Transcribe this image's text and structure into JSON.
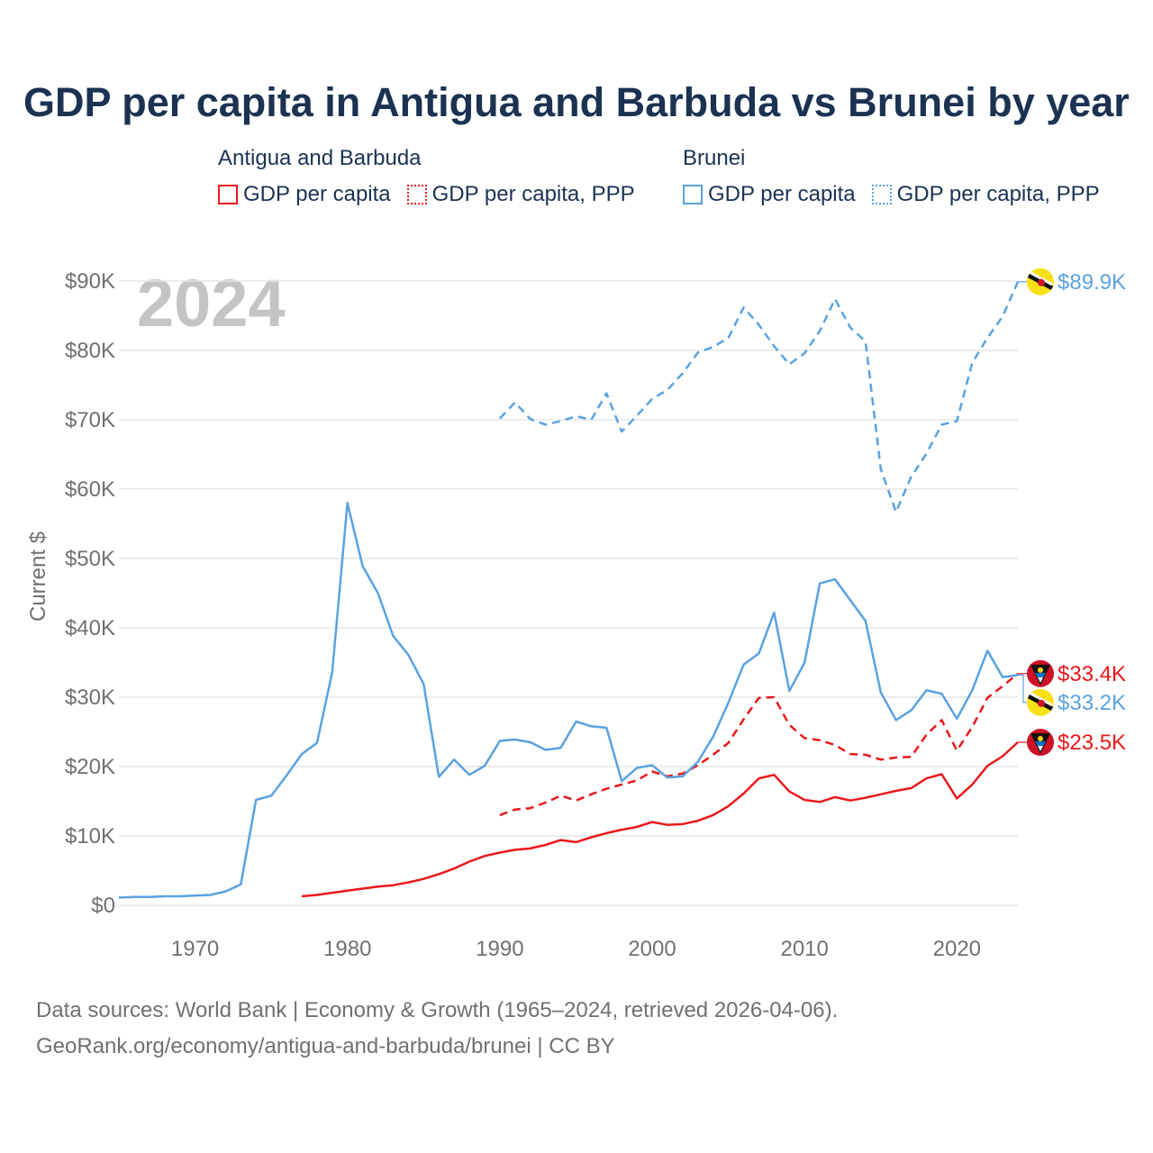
{
  "title": "GDP per capita in Antigua and Barbuda vs Brunei by year",
  "legend": {
    "antigua": {
      "title": "Antigua and Barbuda",
      "gdp": "GDP per capita",
      "ppp": "GDP per capita, PPP"
    },
    "brunei": {
      "title": "Brunei",
      "gdp": "GDP per capita",
      "ppp": "GDP per capita, PPP"
    }
  },
  "colors": {
    "antigua": "#e8191c",
    "brunei": "#5aa2e0",
    "grid": "#e6e6e6",
    "axis_text": "#707070",
    "year_watermark": "#c4c4c4",
    "title": "#1b3252"
  },
  "source": {
    "line1": "Data sources: World Bank | Economy & Growth (1965–2024, retrieved 2026-04-06).",
    "line2": "GeoRank.org/economy/antigua-and-barbuda/brunei | CC BY"
  },
  "chart_data": {
    "type": "line",
    "year_label": "2024",
    "ylabel": "Current $",
    "xlim": [
      1965,
      2024
    ],
    "ylim": [
      0,
      90000
    ],
    "x_ticks": [
      1970,
      1980,
      1990,
      2000,
      2010,
      2020
    ],
    "x_tick_labels": [
      "1970",
      "1980",
      "1990",
      "2000",
      "2010",
      "2020"
    ],
    "y_ticks": [
      0,
      10000,
      20000,
      30000,
      40000,
      50000,
      60000,
      70000,
      80000,
      90000
    ],
    "y_tick_labels": [
      "$0",
      "$10K",
      "$20K",
      "$30K",
      "$40K",
      "$50K",
      "$60K",
      "$70K",
      "$80K",
      "$90K"
    ],
    "series": [
      {
        "name": "Antigua and Barbuda GDP per capita",
        "country": "antigua",
        "style": "solid",
        "end_label": "$23.5K",
        "x": [
          1977,
          1978,
          1979,
          1980,
          1981,
          1982,
          1983,
          1984,
          1985,
          1986,
          1987,
          1988,
          1989,
          1990,
          1991,
          1992,
          1993,
          1994,
          1995,
          1996,
          1997,
          1998,
          1999,
          2000,
          2001,
          2002,
          2003,
          2004,
          2005,
          2006,
          2007,
          2008,
          2009,
          2010,
          2011,
          2012,
          2013,
          2014,
          2015,
          2016,
          2017,
          2018,
          2019,
          2020,
          2021,
          2022,
          2023,
          2024
        ],
        "values": [
          1300,
          1500,
          1800,
          2100,
          2400,
          2700,
          2900,
          3300,
          3800,
          4500,
          5300,
          6300,
          7100,
          7600,
          8000,
          8200,
          8700,
          9400,
          9100,
          9800,
          10400,
          10900,
          11300,
          12000,
          11600,
          11700,
          12200,
          13000,
          14300,
          16100,
          18300,
          18800,
          16400,
          15200,
          14900,
          15600,
          15100,
          15500,
          16000,
          16500,
          16900,
          18300,
          18900,
          15400,
          17400,
          20100,
          21500,
          23500
        ]
      },
      {
        "name": "Antigua and Barbuda GDP per capita, PPP",
        "country": "antigua",
        "style": "dashed",
        "end_label": "$33.4K",
        "x": [
          1990,
          1991,
          1992,
          1993,
          1994,
          1995,
          1996,
          1997,
          1998,
          1999,
          2000,
          2001,
          2002,
          2003,
          2004,
          2005,
          2006,
          2007,
          2008,
          2009,
          2010,
          2011,
          2012,
          2013,
          2014,
          2015,
          2016,
          2017,
          2018,
          2019,
          2020,
          2021,
          2022,
          2023,
          2024
        ],
        "values": [
          13000,
          13800,
          14000,
          14800,
          15800,
          15100,
          16000,
          16800,
          17400,
          18000,
          19300,
          18600,
          19000,
          20200,
          21700,
          23400,
          26800,
          29900,
          30000,
          26000,
          24100,
          23800,
          23100,
          21800,
          21700,
          21000,
          21300,
          21400,
          24600,
          26700,
          22300,
          25700,
          29900,
          31600,
          33400
        ]
      },
      {
        "name": "Brunei GDP per capita",
        "country": "brunei",
        "style": "solid",
        "end_label": "$33.2K",
        "x": [
          1965,
          1966,
          1967,
          1968,
          1969,
          1970,
          1971,
          1972,
          1973,
          1974,
          1975,
          1976,
          1977,
          1978,
          1979,
          1980,
          1981,
          1982,
          1983,
          1984,
          1985,
          1986,
          1987,
          1988,
          1989,
          1990,
          1991,
          1992,
          1993,
          1994,
          1995,
          1996,
          1997,
          1998,
          1999,
          2000,
          2001,
          2002,
          2003,
          2004,
          2005,
          2006,
          2007,
          2008,
          2009,
          2010,
          2011,
          2012,
          2013,
          2014,
          2015,
          2016,
          2017,
          2018,
          2019,
          2020,
          2021,
          2022,
          2023,
          2024
        ],
        "values": [
          1100,
          1200,
          1200,
          1300,
          1300,
          1400,
          1500,
          2000,
          3000,
          15200,
          15800,
          18700,
          21800,
          23400,
          33600,
          58000,
          48900,
          45000,
          38800,
          36100,
          31900,
          18500,
          21000,
          18800,
          20100,
          23700,
          23900,
          23500,
          22400,
          22700,
          26500,
          25800,
          25600,
          17900,
          19800,
          20200,
          18400,
          18600,
          20700,
          24300,
          29200,
          34700,
          36300,
          42200,
          30900,
          35000,
          46400,
          47000,
          44000,
          41000,
          30700,
          26700,
          28100,
          31000,
          30500,
          26900,
          31000,
          36700,
          32900,
          33200
        ]
      },
      {
        "name": "Brunei GDP per capita, PPP",
        "country": "brunei",
        "style": "dashed",
        "end_label": "$89.9K",
        "x": [
          1990,
          1991,
          1992,
          1993,
          1994,
          1995,
          1996,
          1997,
          1998,
          1999,
          2000,
          2001,
          2002,
          2003,
          2004,
          2005,
          2006,
          2007,
          2008,
          2009,
          2010,
          2011,
          2012,
          2013,
          2014,
          2015,
          2016,
          2017,
          2018,
          2019,
          2020,
          2021,
          2022,
          2023,
          2024
        ],
        "values": [
          70200,
          72500,
          70100,
          69300,
          69800,
          70500,
          70000,
          73800,
          68300,
          70600,
          73000,
          74300,
          76700,
          79700,
          80500,
          81800,
          86200,
          83700,
          80600,
          78000,
          79600,
          82800,
          87400,
          83300,
          81300,
          62900,
          56700,
          61800,
          65100,
          69300,
          69800,
          78200,
          81800,
          84900,
          89900
        ]
      }
    ]
  }
}
